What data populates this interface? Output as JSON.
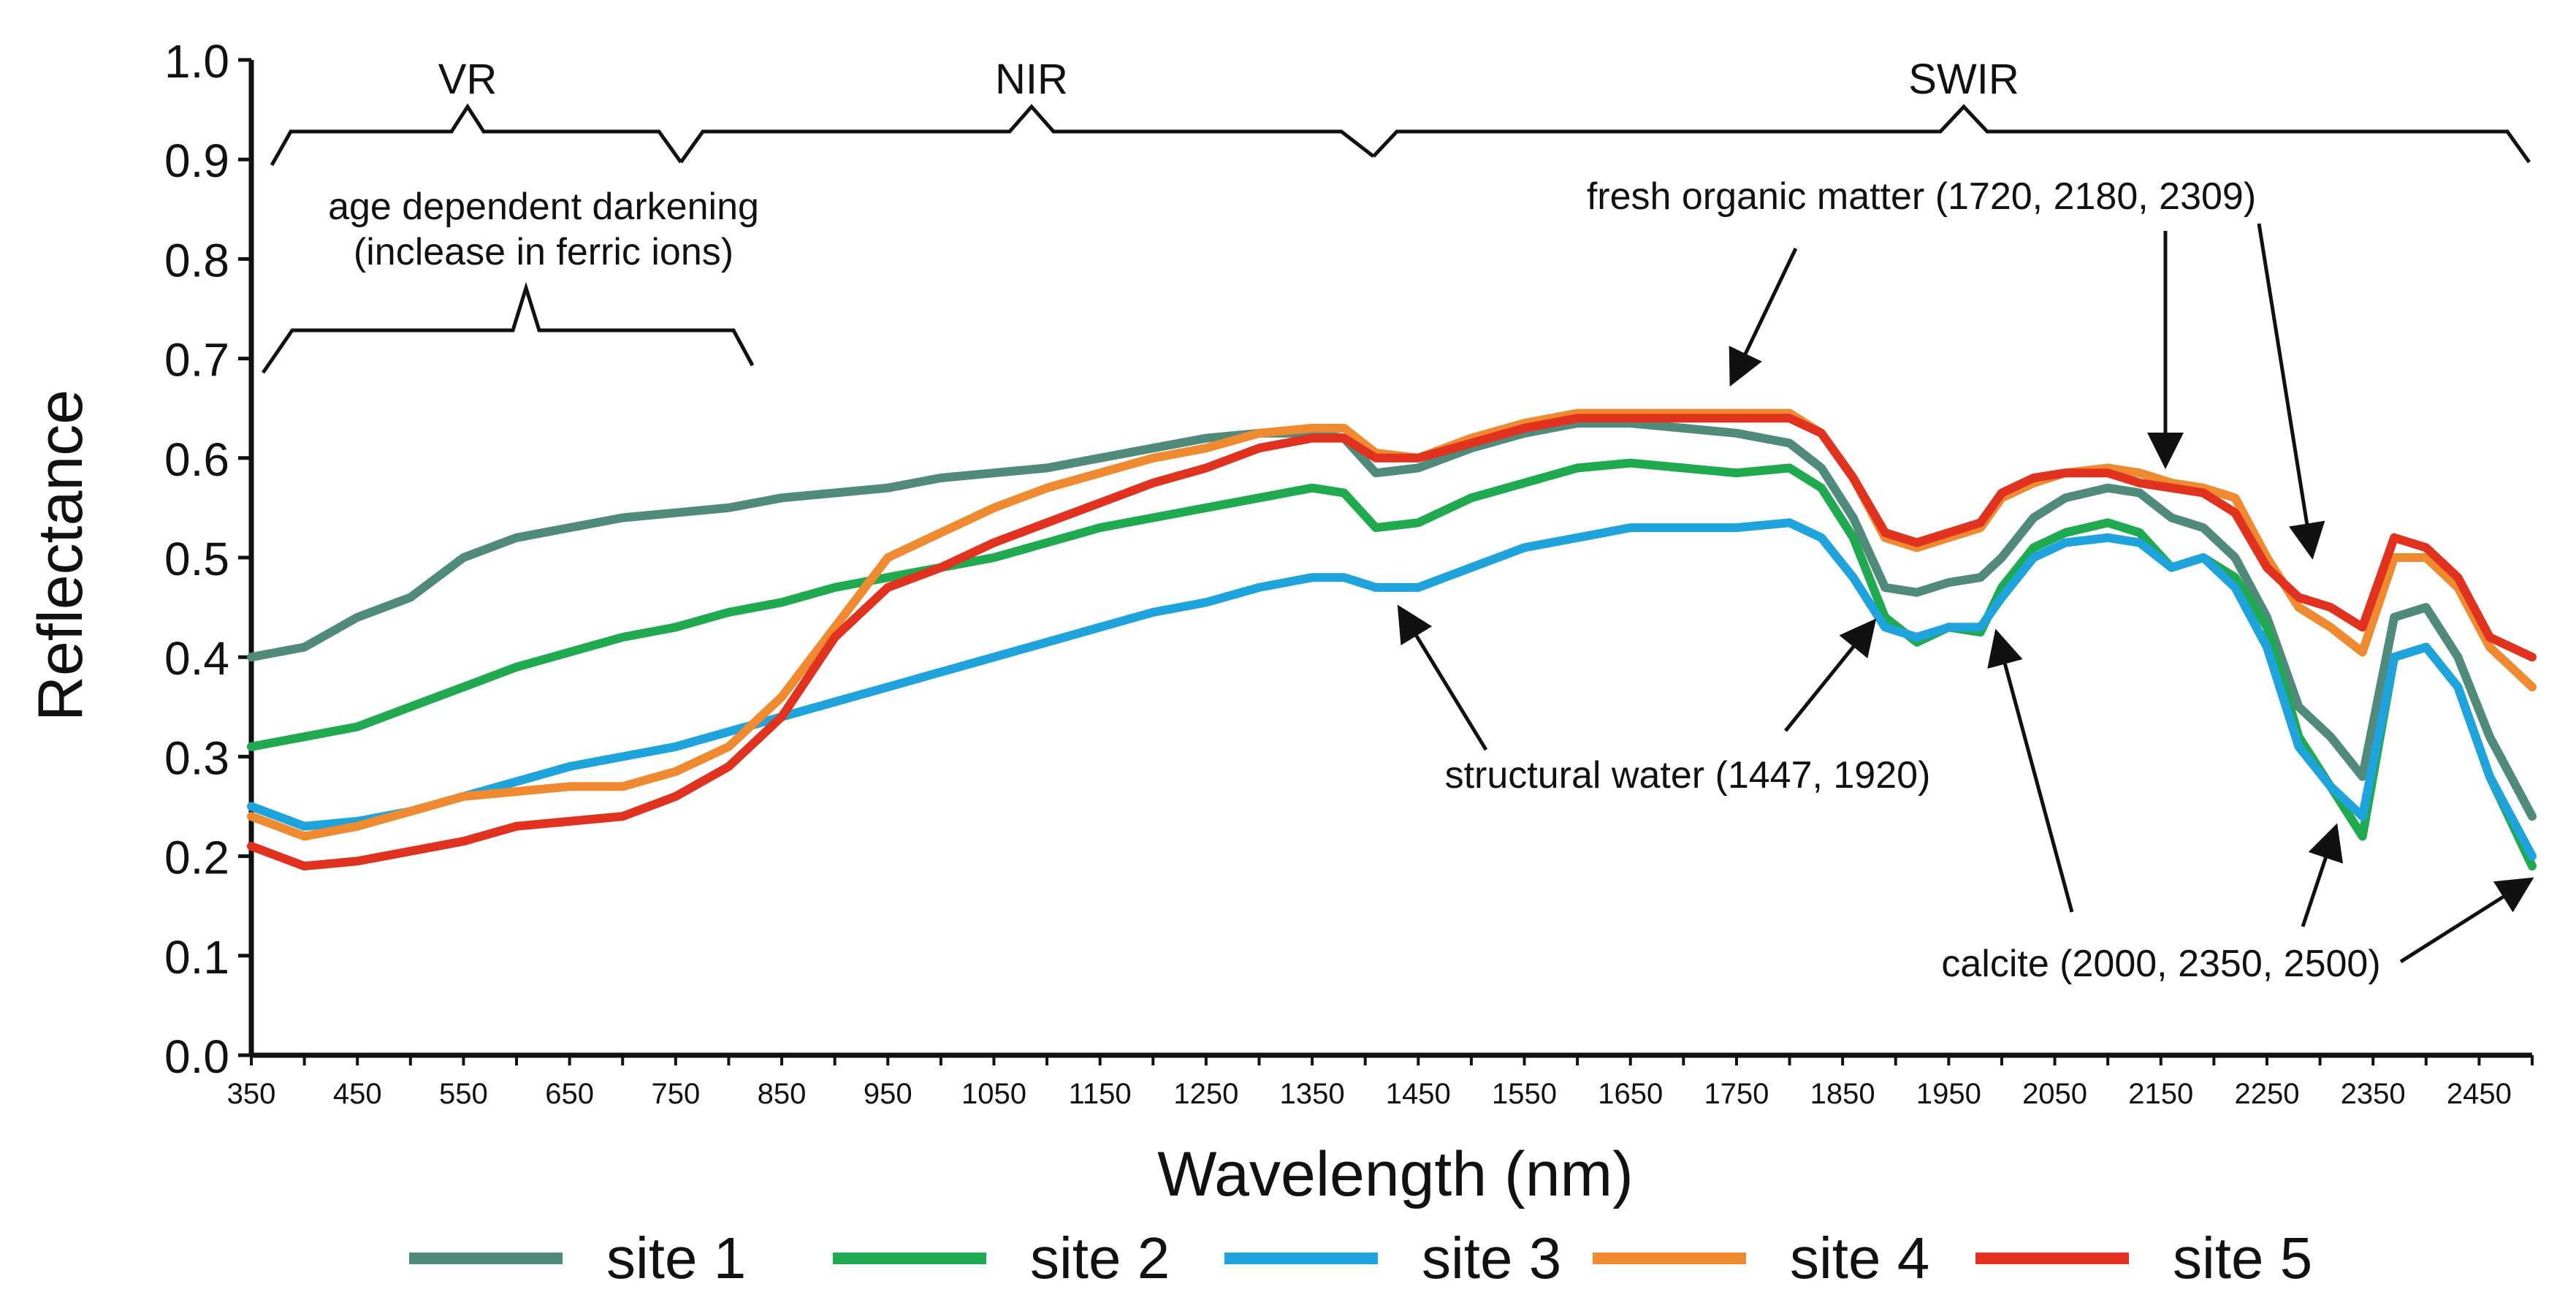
{
  "chart_data": {
    "type": "line",
    "title": "",
    "xlabel": "Wavelength (nm)",
    "ylabel": "Reflectance",
    "xlim": [
      350,
      2500
    ],
    "ylim": [
      0.0,
      1.0
    ],
    "xticks": [
      "350",
      "450",
      "550",
      "650",
      "750",
      "850",
      "950",
      "1050",
      "1150",
      "1250",
      "1350",
      "1450",
      "1550",
      "1650",
      "1750",
      "1850",
      "1950",
      "2050",
      "2150",
      "2250",
      "2350",
      "2450"
    ],
    "yticks": [
      "0.0",
      "0.1",
      "0.2",
      "0.3",
      "0.4",
      "0.5",
      "0.6",
      "0.7",
      "0.8",
      "0.9",
      "1.0"
    ],
    "x": [
      350,
      400,
      450,
      500,
      550,
      600,
      650,
      700,
      750,
      800,
      850,
      900,
      950,
      1000,
      1050,
      1100,
      1150,
      1200,
      1250,
      1300,
      1350,
      1380,
      1410,
      1450,
      1500,
      1550,
      1600,
      1650,
      1700,
      1750,
      1800,
      1830,
      1860,
      1890,
      1920,
      1950,
      1980,
      2000,
      2030,
      2060,
      2100,
      2130,
      2160,
      2190,
      2220,
      2250,
      2280,
      2310,
      2340,
      2370,
      2400,
      2430,
      2460,
      2500
    ],
    "series": [
      {
        "name": "site 1",
        "color": "#4f8a7a",
        "values": [
          0.4,
          0.41,
          0.44,
          0.46,
          0.5,
          0.52,
          0.53,
          0.54,
          0.545,
          0.55,
          0.56,
          0.565,
          0.57,
          0.58,
          0.585,
          0.59,
          0.6,
          0.61,
          0.62,
          0.625,
          0.625,
          0.62,
          0.585,
          0.59,
          0.61,
          0.625,
          0.635,
          0.635,
          0.63,
          0.625,
          0.615,
          0.59,
          0.54,
          0.47,
          0.465,
          0.475,
          0.48,
          0.5,
          0.54,
          0.56,
          0.57,
          0.565,
          0.54,
          0.53,
          0.5,
          0.44,
          0.35,
          0.32,
          0.28,
          0.44,
          0.45,
          0.4,
          0.32,
          0.24
        ]
      },
      {
        "name": "site 2",
        "color": "#1faa4f",
        "values": [
          0.31,
          0.32,
          0.33,
          0.35,
          0.37,
          0.39,
          0.405,
          0.42,
          0.43,
          0.445,
          0.455,
          0.47,
          0.48,
          0.49,
          0.5,
          0.515,
          0.53,
          0.54,
          0.55,
          0.56,
          0.57,
          0.565,
          0.53,
          0.535,
          0.56,
          0.575,
          0.59,
          0.595,
          0.59,
          0.585,
          0.59,
          0.57,
          0.52,
          0.44,
          0.415,
          0.43,
          0.425,
          0.47,
          0.51,
          0.525,
          0.535,
          0.525,
          0.49,
          0.5,
          0.48,
          0.43,
          0.32,
          0.27,
          0.22,
          0.4,
          0.41,
          0.37,
          0.28,
          0.19
        ]
      },
      {
        "name": "site 3",
        "color": "#1ea3dc",
        "values": [
          0.25,
          0.23,
          0.235,
          0.245,
          0.26,
          0.275,
          0.29,
          0.3,
          0.31,
          0.325,
          0.34,
          0.355,
          0.37,
          0.385,
          0.4,
          0.415,
          0.43,
          0.445,
          0.455,
          0.47,
          0.48,
          0.48,
          0.47,
          0.47,
          0.49,
          0.51,
          0.52,
          0.53,
          0.53,
          0.53,
          0.535,
          0.52,
          0.48,
          0.43,
          0.42,
          0.43,
          0.43,
          0.46,
          0.5,
          0.515,
          0.52,
          0.515,
          0.49,
          0.5,
          0.47,
          0.41,
          0.31,
          0.27,
          0.24,
          0.4,
          0.41,
          0.37,
          0.28,
          0.2
        ]
      },
      {
        "name": "site 4",
        "color": "#f08a30",
        "values": [
          0.24,
          0.22,
          0.23,
          0.245,
          0.26,
          0.265,
          0.27,
          0.27,
          0.285,
          0.31,
          0.36,
          0.43,
          0.5,
          0.525,
          0.55,
          0.57,
          0.585,
          0.6,
          0.61,
          0.625,
          0.63,
          0.63,
          0.605,
          0.6,
          0.62,
          0.635,
          0.645,
          0.645,
          0.645,
          0.645,
          0.645,
          0.625,
          0.58,
          0.52,
          0.51,
          0.52,
          0.53,
          0.56,
          0.575,
          0.585,
          0.59,
          0.585,
          0.575,
          0.57,
          0.56,
          0.5,
          0.45,
          0.43,
          0.405,
          0.5,
          0.5,
          0.47,
          0.41,
          0.37
        ]
      },
      {
        "name": "site 5",
        "color": "#e0321e",
        "values": [
          0.21,
          0.19,
          0.195,
          0.205,
          0.215,
          0.23,
          0.235,
          0.24,
          0.26,
          0.29,
          0.34,
          0.42,
          0.47,
          0.49,
          0.515,
          0.535,
          0.555,
          0.575,
          0.59,
          0.61,
          0.62,
          0.62,
          0.6,
          0.6,
          0.615,
          0.63,
          0.64,
          0.64,
          0.64,
          0.64,
          0.64,
          0.625,
          0.58,
          0.525,
          0.515,
          0.525,
          0.535,
          0.565,
          0.58,
          0.585,
          0.585,
          0.575,
          0.57,
          0.565,
          0.545,
          0.49,
          0.46,
          0.45,
          0.43,
          0.52,
          0.51,
          0.48,
          0.42,
          0.4
        ]
      }
    ],
    "annotations": {
      "vr": "VR",
      "nir": "NIR",
      "swir": "SWIR",
      "age_line1": "age dependent darkening",
      "age_line2": "(inclease in ferric ions)",
      "fresh": "fresh organic matter (1720, 2180, 2309)",
      "water": "structural water (1447, 1920)",
      "calcite": "calcite (2000, 2350, 2500)"
    },
    "legend_position": "bottom"
  }
}
